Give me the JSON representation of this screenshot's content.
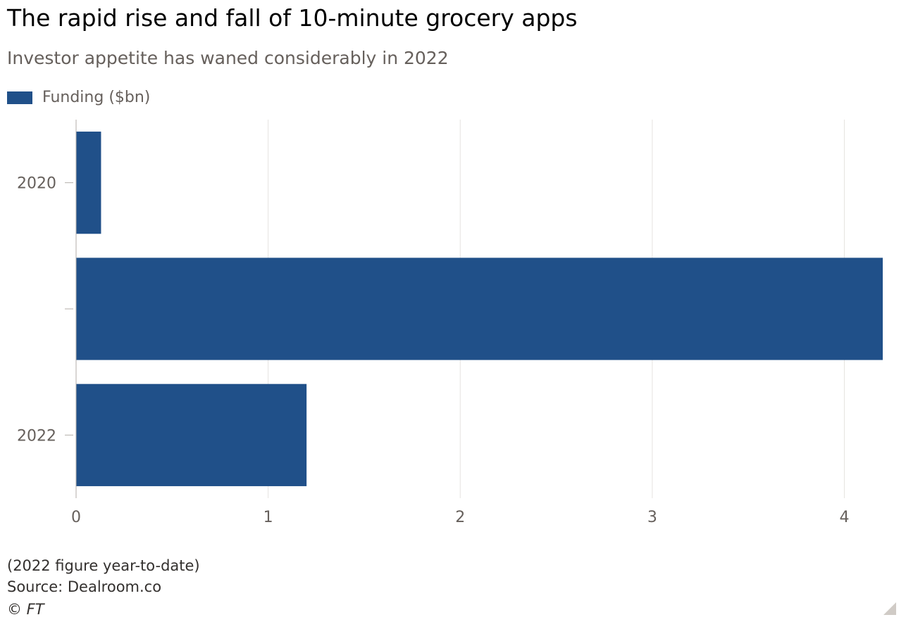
{
  "header": {
    "title": "The rapid rise and fall of 10-minute grocery apps",
    "subtitle": "Investor appetite has waned considerably in 2022"
  },
  "legend": {
    "label": "Funding ($bn)",
    "color": "#205089"
  },
  "chart_data": {
    "type": "bar",
    "orientation": "horizontal",
    "categories": [
      "2020",
      "",
      "2022"
    ],
    "series": [
      {
        "name": "Funding ($bn)",
        "values": [
          0.13,
          4.2,
          1.2
        ],
        "color": "#205089"
      }
    ],
    "xlim": [
      0,
      4.2
    ],
    "xticks": [
      "0",
      "1",
      "2",
      "3",
      "4"
    ],
    "grid": "vertical",
    "legend_position": "top-left"
  },
  "footer": {
    "note": "(2022 figure year-to-date)",
    "source": "Source: Dealroom.co",
    "copyright": "© FT"
  }
}
